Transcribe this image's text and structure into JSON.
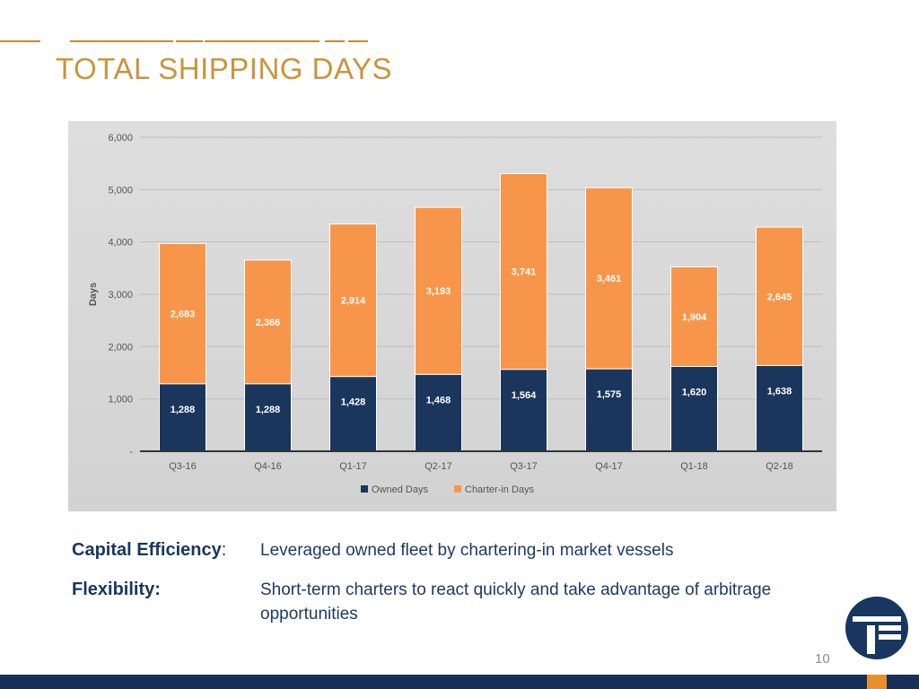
{
  "slide": {
    "title": "TOTAL SHIPPING DAYS",
    "page_number": "10",
    "colors": {
      "title": "#C8953C",
      "navy": "#172F57",
      "orange": "#F7964A",
      "accent": "#E8912C"
    }
  },
  "chart_data": {
    "type": "bar",
    "stacked": true,
    "title": "",
    "xlabel": "",
    "ylabel": "Days",
    "ylim": [
      0,
      6000
    ],
    "yticks": [
      0,
      1000,
      2000,
      3000,
      4000,
      5000,
      6000
    ],
    "ytick_labels": [
      "-",
      "1,000",
      "2,000",
      "3,000",
      "4,000",
      "5,000",
      "6,000"
    ],
    "categories": [
      "Q3-16",
      "Q4-16",
      "Q1-17",
      "Q2-17",
      "Q3-17",
      "Q4-17",
      "Q1-18",
      "Q2-18"
    ],
    "series": [
      {
        "name": "Owned Days",
        "color": "#1B365D",
        "values": [
          1288,
          1288,
          1428,
          1468,
          1564,
          1575,
          1620,
          1638
        ],
        "labels": [
          "1,288",
          "1,288",
          "1,428",
          "1,468",
          "1,564",
          "1,575",
          "1,620",
          "1,638"
        ]
      },
      {
        "name": "Charter-in Days",
        "color": "#F7964A",
        "values": [
          2683,
          2366,
          2914,
          3193,
          3741,
          3461,
          1904,
          2645
        ],
        "labels": [
          "2,683",
          "2,366",
          "2,914",
          "3,193",
          "3,741",
          "3,461",
          "1,904",
          "2,645"
        ]
      }
    ],
    "legend_position": "bottom-center"
  },
  "bullets": [
    {
      "label": "Capital Efficiency",
      "colon": ":",
      "text": "Leveraged owned fleet by chartering-in market vessels"
    },
    {
      "label": "Flexibility:",
      "colon": "",
      "text": "Short-term charters to react quickly and take advantage of arbitrage opportunities"
    }
  ],
  "logo": {
    "name": "company-logo-icon"
  }
}
